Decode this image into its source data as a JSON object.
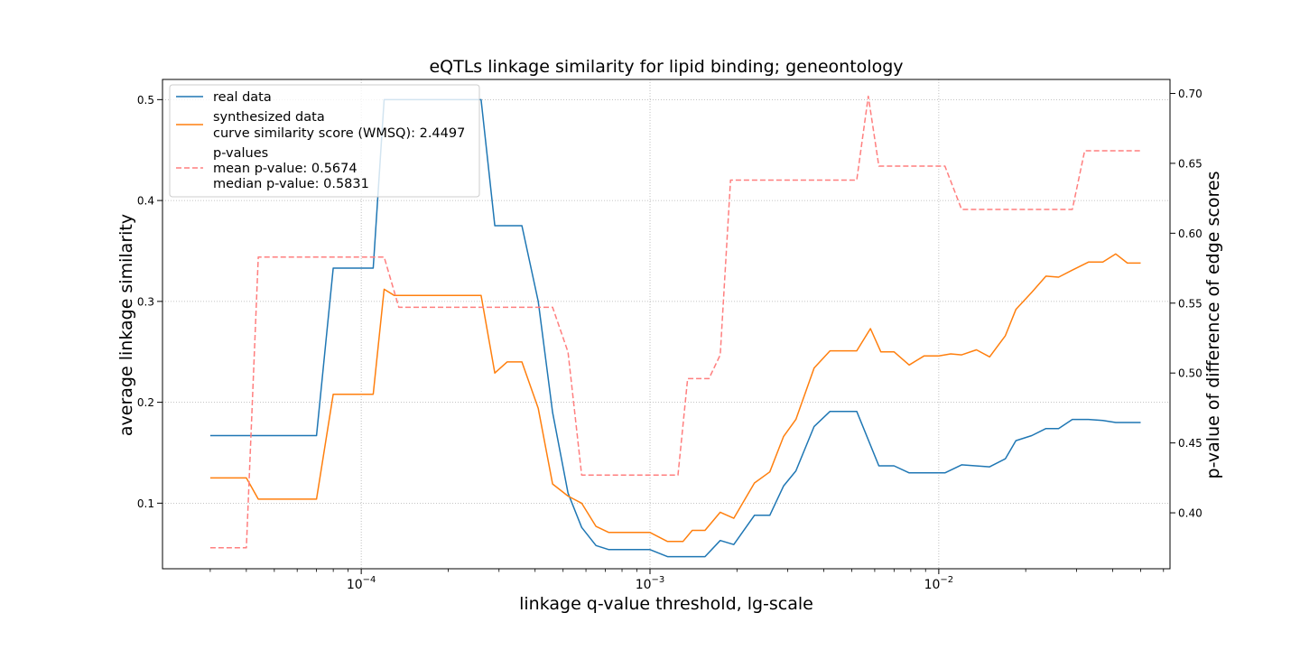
{
  "chart_data": {
    "type": "line",
    "title": "eQTLs linkage similarity for lipid binding; geneontology",
    "xlabel": "linkage q-value threshold, lg-scale",
    "ylabel_left": "average linkage similarity",
    "ylabel_right": "p-value of difference of edge scores",
    "x_scale": "log",
    "xlim": [
      2.05e-05,
      0.0632
    ],
    "ylim_left": [
      0.035,
      0.52
    ],
    "ylim_right": [
      0.36,
      0.71
    ],
    "x_major_ticks": [
      {
        "value": 0.0001,
        "base": "10",
        "exp": "−4"
      },
      {
        "value": 0.001,
        "base": "10",
        "exp": "−3"
      },
      {
        "value": 0.01,
        "base": "10",
        "exp": "−2"
      }
    ],
    "y_left_ticks": [
      0.1,
      0.2,
      0.3,
      0.4,
      0.5
    ],
    "y_left_tick_labels": [
      "0.1",
      "0.2",
      "0.3",
      "0.4",
      "0.5"
    ],
    "y_right_ticks": [
      0.4,
      0.45,
      0.5,
      0.55,
      0.6,
      0.65,
      0.7
    ],
    "y_right_tick_labels": [
      "0.40",
      "0.45",
      "0.50",
      "0.55",
      "0.60",
      "0.65",
      "0.70"
    ],
    "grid": true,
    "legend_placement": "upper-left",
    "legend": [
      {
        "lines": [
          "real data"
        ],
        "color": "#1f77b4",
        "style": "solid"
      },
      {
        "lines": [
          "synthesized data",
          "curve similarity score (WMSQ): 2.4497"
        ],
        "color": "#ff7f0e",
        "style": "solid"
      },
      {
        "lines": [
          "p-values",
          "mean p-value: 0.5674",
          "median p-value: 0.5831"
        ],
        "color": "#ff7f7f",
        "style": "dashed"
      }
    ],
    "series": [
      {
        "name": "real data",
        "axis": "left",
        "color": "#1f77b4",
        "style": "solid",
        "x": [
          3e-05,
          7e-05,
          8e-05,
          0.00011,
          0.00012,
          0.00026,
          0.00029,
          0.00036,
          0.00041,
          0.00046,
          0.00052,
          0.00058,
          0.00065,
          0.00072,
          0.001,
          0.00115,
          0.00155,
          0.00175,
          0.00195,
          0.0023,
          0.0026,
          0.0029,
          0.0032,
          0.0037,
          0.0042,
          0.0052,
          0.0062,
          0.007,
          0.0079,
          0.0105,
          0.012,
          0.015,
          0.017,
          0.0185,
          0.021,
          0.0235,
          0.026,
          0.029,
          0.033,
          0.037,
          0.041,
          0.05
        ],
        "y": [
          0.167,
          0.167,
          0.333,
          0.333,
          0.5,
          0.5,
          0.375,
          0.375,
          0.3,
          0.19,
          0.11,
          0.076,
          0.058,
          0.054,
          0.054,
          0.047,
          0.047,
          0.063,
          0.059,
          0.088,
          0.088,
          0.117,
          0.132,
          0.176,
          0.191,
          0.191,
          0.137,
          0.137,
          0.13,
          0.13,
          0.138,
          0.136,
          0.144,
          0.162,
          0.167,
          0.174,
          0.174,
          0.183,
          0.183,
          0.182,
          0.18,
          0.18
        ]
      },
      {
        "name": "synthesized data",
        "axis": "left",
        "color": "#ff7f0e",
        "style": "solid",
        "x": [
          3e-05,
          4e-05,
          4.4e-05,
          7e-05,
          8e-05,
          0.00011,
          0.00012,
          0.00013,
          0.00026,
          0.00029,
          0.00032,
          0.00036,
          0.00041,
          0.00046,
          0.00052,
          0.00058,
          0.00065,
          0.00072,
          0.001,
          0.00115,
          0.0013,
          0.0014,
          0.00155,
          0.00175,
          0.00195,
          0.0023,
          0.0026,
          0.0029,
          0.0032,
          0.0037,
          0.0042,
          0.0052,
          0.0058,
          0.0063,
          0.007,
          0.0079,
          0.0089,
          0.01,
          0.011,
          0.012,
          0.0135,
          0.015,
          0.017,
          0.0185,
          0.021,
          0.0235,
          0.026,
          0.029,
          0.033,
          0.037,
          0.041,
          0.045,
          0.05
        ],
        "y": [
          0.125,
          0.125,
          0.104,
          0.104,
          0.208,
          0.208,
          0.312,
          0.306,
          0.306,
          0.229,
          0.24,
          0.24,
          0.194,
          0.119,
          0.107,
          0.1,
          0.077,
          0.071,
          0.071,
          0.062,
          0.062,
          0.073,
          0.073,
          0.091,
          0.085,
          0.12,
          0.131,
          0.166,
          0.183,
          0.234,
          0.251,
          0.251,
          0.273,
          0.25,
          0.25,
          0.237,
          0.246,
          0.246,
          0.248,
          0.247,
          0.252,
          0.245,
          0.266,
          0.292,
          0.309,
          0.325,
          0.324,
          0.331,
          0.339,
          0.339,
          0.347,
          0.338,
          0.338
        ]
      },
      {
        "name": "p-values",
        "axis": "right",
        "color": "#ff7f7f",
        "style": "dashed",
        "x": [
          3e-05,
          4e-05,
          4.4e-05,
          0.00012,
          0.000135,
          0.00046,
          0.00052,
          0.00058,
          0.00125,
          0.00135,
          0.0016,
          0.00175,
          0.0019,
          0.0052,
          0.0057,
          0.0062,
          0.0105,
          0.012,
          0.029,
          0.032,
          0.05
        ],
        "y": [
          0.375,
          0.375,
          0.583,
          0.583,
          0.547,
          0.547,
          0.515,
          0.427,
          0.427,
          0.496,
          0.496,
          0.513,
          0.638,
          0.638,
          0.698,
          0.648,
          0.648,
          0.617,
          0.617,
          0.659,
          0.659
        ]
      }
    ]
  }
}
